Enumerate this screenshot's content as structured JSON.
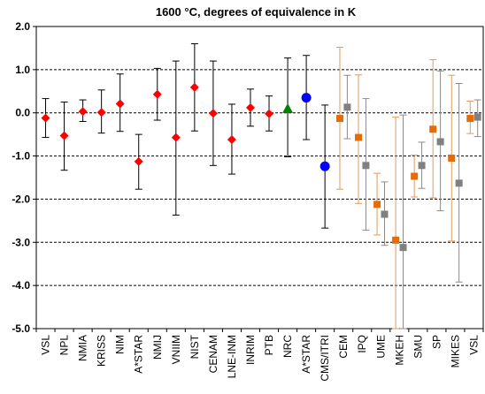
{
  "chart_data": {
    "type": "scatter",
    "title": "1600 °C, degrees of equivalence in K",
    "xlabel": "",
    "ylabel": "",
    "ylim": [
      -5.0,
      2.0
    ],
    "yticks": [
      -5.0,
      -4.0,
      -3.0,
      -2.0,
      -1.0,
      0.0,
      1.0,
      2.0
    ],
    "ytick_labels": [
      "-5.0",
      "-4.0",
      "-3.0",
      "-2.0",
      "-1.0",
      "0.0",
      "1.0",
      "2.0"
    ],
    "grid": "horizontal dashed at integer values",
    "categories": [
      "VSL",
      "NPL",
      "NMIA",
      "KRISS",
      "NIM",
      "A*STAR",
      "NMIJ",
      "VNIIM",
      "NIST",
      "CENAM",
      "LNE-INM",
      "INRIM",
      "PTB",
      "NRC",
      "A*STAR",
      "CMS/ITRI",
      "CEM",
      "IPQ",
      "UME",
      "MKEH",
      "SMU",
      "SP",
      "MIKES",
      "VSL"
    ],
    "colors": {
      "red": "#ff0000",
      "green": "#008000",
      "blue": "#0000ff",
      "orange": "#e46c0a",
      "gray": "#808080",
      "errorbar_black": "#000000",
      "errorbar_orange": "#e19a5a",
      "errorbar_gray": "#8a8a8a"
    },
    "series": [
      {
        "marker": "diamond",
        "color": "red",
        "errorbar_color": "errorbar_black",
        "points": [
          {
            "category_index": 0,
            "y": -0.12,
            "low": -0.57,
            "high": 0.33
          },
          {
            "category_index": 1,
            "y": -0.53,
            "low": -1.33,
            "high": 0.25
          },
          {
            "category_index": 2,
            "y": 0.03,
            "low": -0.2,
            "high": 0.3
          },
          {
            "category_index": 3,
            "y": 0.01,
            "low": -0.47,
            "high": 0.53
          },
          {
            "category_index": 4,
            "y": 0.21,
            "low": -0.43,
            "high": 0.9
          },
          {
            "category_index": 5,
            "y": -1.13,
            "low": -1.77,
            "high": -0.5
          },
          {
            "category_index": 6,
            "y": 0.43,
            "low": -0.17,
            "high": 1.03
          },
          {
            "category_index": 7,
            "y": -0.57,
            "low": -2.37,
            "high": 1.2
          },
          {
            "category_index": 8,
            "y": 0.59,
            "low": -0.42,
            "high": 1.6
          },
          {
            "category_index": 9,
            "y": -0.01,
            "low": -1.22,
            "high": 1.2
          },
          {
            "category_index": 10,
            "y": -0.62,
            "low": -1.42,
            "high": 0.2
          },
          {
            "category_index": 11,
            "y": 0.12,
            "low": -0.31,
            "high": 0.55
          },
          {
            "category_index": 12,
            "y": -0.02,
            "low": -0.42,
            "high": 0.39
          }
        ]
      },
      {
        "marker": "triangle",
        "color": "green",
        "errorbar_color": "errorbar_black",
        "points": [
          {
            "category_index": 13,
            "y": 0.1,
            "low": -1.02,
            "high": 1.27
          }
        ]
      },
      {
        "marker": "circle",
        "color": "blue",
        "errorbar_color": "errorbar_black",
        "points": [
          {
            "category_index": 14,
            "y": 0.35,
            "low": -0.62,
            "high": 1.33
          },
          {
            "category_index": 15,
            "y": -1.24,
            "low": -2.67,
            "high": 0.18
          }
        ]
      },
      {
        "marker": "square",
        "color": "orange",
        "errorbar_color": "errorbar_orange",
        "offset": -0.2,
        "points": [
          {
            "category_index": 16,
            "y": -0.13,
            "low": -1.77,
            "high": 1.52
          },
          {
            "category_index": 17,
            "y": -0.57,
            "low": -2.1,
            "high": 0.88
          },
          {
            "category_index": 18,
            "y": -2.12,
            "low": -2.83,
            "high": -1.4
          },
          {
            "category_index": 19,
            "y": -2.95,
            "low": -5.0,
            "high": -0.1
          },
          {
            "category_index": 20,
            "y": -1.47,
            "low": -1.95,
            "high": -0.98
          },
          {
            "category_index": 21,
            "y": -0.38,
            "low": -1.97,
            "high": 1.23
          },
          {
            "category_index": 22,
            "y": -1.05,
            "low": -2.97,
            "high": 0.87
          },
          {
            "category_index": 23,
            "y": -0.13,
            "low": -0.48,
            "high": 0.27
          }
        ]
      },
      {
        "marker": "square",
        "color": "gray",
        "errorbar_color": "errorbar_gray",
        "offset": 0.2,
        "points": [
          {
            "category_index": 16,
            "y": 0.13,
            "low": -0.6,
            "high": 0.87
          },
          {
            "category_index": 17,
            "y": -1.22,
            "low": -2.72,
            "high": 0.33
          },
          {
            "category_index": 18,
            "y": -2.35,
            "low": -3.07,
            "high": -1.6
          },
          {
            "category_index": 19,
            "y": -3.12,
            "low": -5.0,
            "high": -0.05
          },
          {
            "category_index": 20,
            "y": -1.22,
            "low": -1.75,
            "high": -0.68
          },
          {
            "category_index": 21,
            "y": -0.67,
            "low": -2.27,
            "high": 0.97
          },
          {
            "category_index": 22,
            "y": -1.63,
            "low": -3.92,
            "high": 0.68
          },
          {
            "category_index": 23,
            "y": -0.1,
            "low": -0.55,
            "high": 0.3
          }
        ]
      }
    ]
  }
}
